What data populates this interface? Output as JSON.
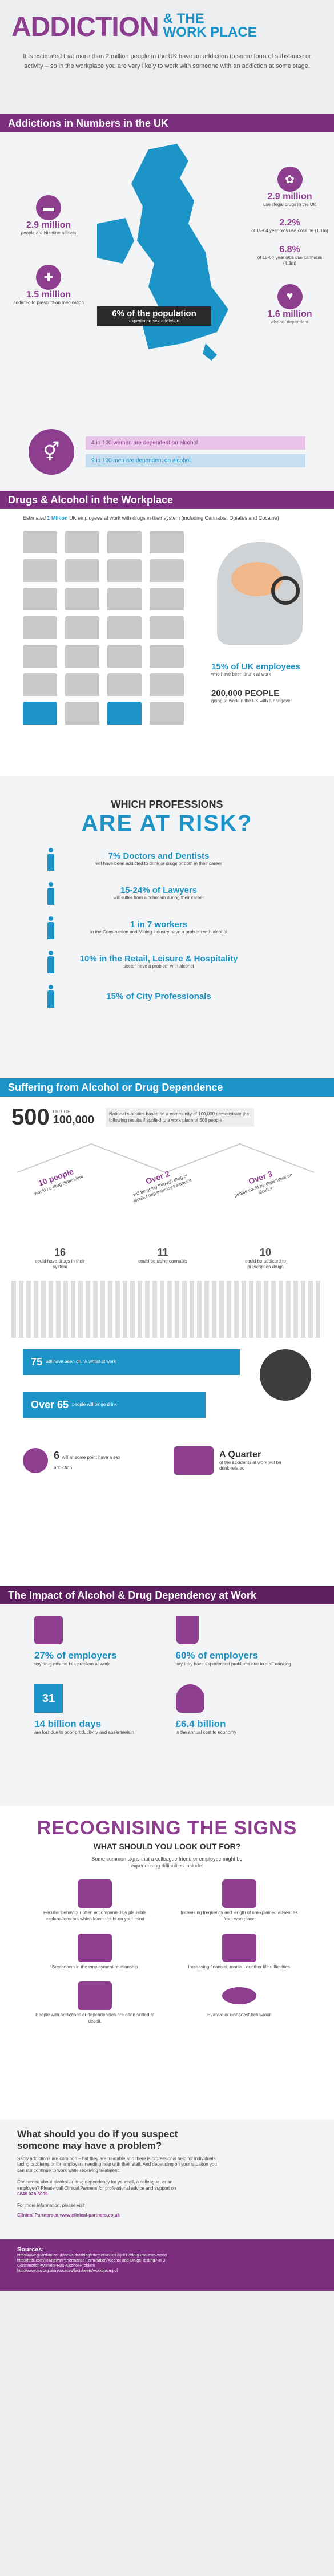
{
  "header": {
    "title_a": "ADDICTION",
    "title_b": "& THE",
    "title_c": "WORK PLACE",
    "intro": "It is estimated that more than 2 million people in the UK have an addiction to some form of substance or activity – so in the workplace you are very likely to work with someone with an addiction at some stage."
  },
  "numbers": {
    "heading": "Addictions in Numbers in the UK",
    "items": [
      {
        "value": "2.9 million",
        "label": "use illegal drugs in the UK"
      },
      {
        "value": "2.2%",
        "label": "of 15-64 year olds use cocaine (1.1m)"
      },
      {
        "value": "6.8%",
        "label": "of 15-64 year olds use cannabis (4.3m)"
      },
      {
        "value": "1.6 million",
        "label": "alcohol dependent"
      },
      {
        "value": "2.9 million",
        "label": "people are Nicotine addicts"
      },
      {
        "value": "1.5 million",
        "label": "addicted to prescription medication"
      }
    ],
    "center_value": "6% of the population",
    "center_label": "experience sex addiction",
    "women": "4 in 100 women are dependent on alcohol",
    "men": "9 in 100 men are dependent on alcohol"
  },
  "workplace": {
    "heading": "Drugs & Alcohol in the Workplace",
    "intro_a": "Estimated",
    "intro_b": "1 Million",
    "intro_c": "UK employees at work with drugs in their system (including Cannabis, Opiates and Cocaine)",
    "stat1_value": "15% of UK employees",
    "stat1_label": "who have been drunk at work",
    "stat2_value": "200,000 PEOPLE",
    "stat2_label": "going to work in the UK with a hangover"
  },
  "professions": {
    "heading_a": "WHICH PROFESSIONS",
    "heading_b": "ARE AT RISK?",
    "items": [
      {
        "value": "7% Doctors and Dentists",
        "label": "will have been addicted to drink or drugs or both in their career"
      },
      {
        "value": "15-24% of Lawyers",
        "label": "will suffer from alcoholism during their career"
      },
      {
        "value": "1 in 7 workers",
        "label": "in the Construction and Mining industry have a problem with alcohol"
      },
      {
        "value": "10% in the Retail, Leisure & Hospitality",
        "label": "sector have a problem with alcohol"
      },
      {
        "value": "15% of City Professionals",
        "label": ""
      }
    ]
  },
  "suffering": {
    "heading": "Suffering from Alcohol or Drug Dependence",
    "big": "500",
    "out_of": "OUT OF",
    "total": "100,000",
    "note": "National statistics based on a community of 100,000 demonstrate the following results if applied to a work place of 500 people",
    "branches": [
      {
        "value": "10 people",
        "label": "would be drug dependent",
        "sub_value": "16",
        "sub_label": "could have drugs in their system"
      },
      {
        "value": "Over 2",
        "label": "will be going through drug or alcohol dependency treatment",
        "sub_value": "11",
        "sub_label": "could be using cannabis"
      },
      {
        "value": "Over 3",
        "label": "people could be dependent on alcohol",
        "sub_value": "10",
        "sub_label": "could be addicted to prescription drugs"
      }
    ],
    "drunk": "75",
    "drunk_label": "will have been drunk whilst at work",
    "binge": "Over 65",
    "binge_label": "people will binge drink",
    "accident_value": "6",
    "accident_label": "will at some point have a sex addiction",
    "quarter_value": "A Quarter",
    "quarter_label": "of the accidents at work will be drink-related"
  },
  "impact": {
    "heading": "The Impact of Alcohol & Drug Dependency at Work",
    "items": [
      {
        "value": "27% of employers",
        "label": "say drug misuse is a problem at work"
      },
      {
        "value": "60% of employers",
        "label": "say they have experienced problems due to staff drinking"
      },
      {
        "value": "14 billion days",
        "label": "are lost due to poor productivity and absenteeism"
      },
      {
        "value": "£6.4 billion",
        "label": "in the annual cost to economy"
      }
    ],
    "calendar_num": "31"
  },
  "signs": {
    "heading": "RECOGNISING THE SIGNS",
    "subheading": "WHAT SHOULD YOU LOOK OUT FOR?",
    "intro": "Some common signs that a colleague friend or employee might be experiencing difficulties include:",
    "items": [
      "Peculiar behaviour often accompanied by plausible explanations but which leave doubt on your mind",
      "Increasing frequency and length of unexplained absences from workplace",
      "Breakdown in the employment relationship",
      "Increasing financial, marital, or other life difficulties",
      "People with addictions or dependencies are often skilled at deceit.",
      "Evasive or dishonest behaviour"
    ]
  },
  "suspect": {
    "heading": "What should you do if you suspect someone may have a problem?",
    "body": "Sadly addictions are common – but they are treatable and there is professional help for individuals facing problems or for employers needing help with their staff. And depending on your situation you can still continue to work while receiving treatment.",
    "concern": "Concerned about alcohol or drug dependency for yourself, a colleague, or an employee? Please call Clinical Partners for professional advice and support on",
    "phone": "0845 026 8099",
    "more": "For more information, please visit",
    "site": "Clinical Partners at www.clinical-partners.co.uk"
  },
  "sources": {
    "heading": "Sources:",
    "lines": [
      "http://www.guardian.co.uk/news/datablog/interactive/2012/jul/12/drug-use-map-world",
      "http://hr.bl.com/HR/news/Performance-Termination/Alcohol-and-Drugs-Testing?-in-3",
      "Construction-Workers-Has-Alcohol-Problem",
      "http://www.ias.org.uk/resources/factsheets/workplace.pdf"
    ]
  },
  "chart_data": {
    "type": "table",
    "series": [
      {
        "values": [
          4,
          9
        ]
      }
    ],
    "categories": [
      "women",
      "men"
    ]
  }
}
